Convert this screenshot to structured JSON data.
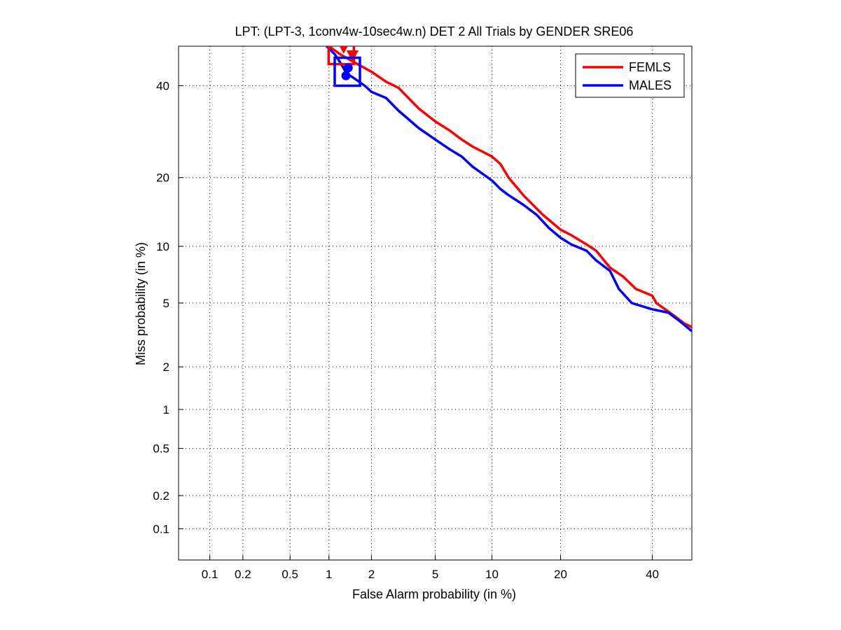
{
  "chart_data": {
    "type": "line",
    "title": "LPT: (LPT-3, 1conv4w-10sec4w.n) DET 2 All Trials by GENDER SRE06",
    "xlabel": "False Alarm probability (in %)",
    "ylabel": "Miss probability (in %)",
    "x_scale": "normal-deviate (probit)",
    "y_scale": "normal-deviate (probit)",
    "xlim": [
      0.05,
      50
    ],
    "ylim": [
      0.05,
      50
    ],
    "xticks": [
      0.1,
      0.2,
      0.5,
      1,
      2,
      5,
      10,
      20,
      40
    ],
    "xtick_labels": [
      "0.1",
      "0.2",
      "0.5",
      "1",
      "2",
      "5",
      "10",
      "20",
      "40"
    ],
    "yticks": [
      0.1,
      0.2,
      0.5,
      1,
      2,
      5,
      10,
      20,
      40
    ],
    "ytick_labels": [
      "0.1",
      "0.2",
      "0.5",
      "1",
      "2",
      "5",
      "10",
      "20",
      "40"
    ],
    "grid": "dotted",
    "legend_position": "top-right",
    "series": [
      {
        "name": "FEMLS",
        "color": "#ff0000",
        "points": [
          [
            1.0,
            50
          ],
          [
            1.2,
            48
          ],
          [
            1.5,
            46
          ],
          [
            2.0,
            43.5
          ],
          [
            2.5,
            41
          ],
          [
            3.0,
            39.5
          ],
          [
            4.0,
            34.5
          ],
          [
            5.0,
            31.5
          ],
          [
            6.0,
            29.5
          ],
          [
            7.0,
            27.5
          ],
          [
            8.0,
            26
          ],
          [
            10.0,
            24
          ],
          [
            11.0,
            22.5
          ],
          [
            12.0,
            20
          ],
          [
            14.0,
            17
          ],
          [
            17.0,
            14
          ],
          [
            20.0,
            12
          ],
          [
            22.0,
            11.3
          ],
          [
            25.0,
            10.2
          ],
          [
            27.0,
            9.5
          ],
          [
            30.0,
            7.8
          ],
          [
            33.0,
            7.0
          ],
          [
            36.0,
            6.0
          ],
          [
            40.0,
            5.5
          ],
          [
            41.0,
            5.0
          ],
          [
            45.0,
            4.3
          ],
          [
            48.0,
            3.8
          ],
          [
            50.0,
            3.6
          ]
        ],
        "operating_points": [
          {
            "marker": "triangle-down",
            "x": 1.28,
            "y": 49.5
          },
          {
            "marker": "triangle-down",
            "x": 1.48,
            "y": 47.5
          },
          {
            "marker": "box",
            "x": 1.23,
            "y": 49.0
          }
        ]
      },
      {
        "name": "MALES",
        "color": "#0000ff",
        "points": [
          [
            0.96,
            50
          ],
          [
            1.1,
            48
          ],
          [
            1.2,
            46
          ],
          [
            1.35,
            43
          ],
          [
            1.5,
            42
          ],
          [
            1.8,
            40
          ],
          [
            2.0,
            38.5
          ],
          [
            2.5,
            37
          ],
          [
            3.0,
            34
          ],
          [
            4.0,
            30
          ],
          [
            5.0,
            27.5
          ],
          [
            6.0,
            25.5
          ],
          [
            7.0,
            24
          ],
          [
            8.0,
            22
          ],
          [
            10.0,
            19.5
          ],
          [
            11.0,
            18
          ],
          [
            12.0,
            17
          ],
          [
            14.0,
            15.5
          ],
          [
            16.0,
            14
          ],
          [
            18.0,
            12.2
          ],
          [
            20.0,
            11
          ],
          [
            22.0,
            10.2
          ],
          [
            25.0,
            9.5
          ],
          [
            27.0,
            8.5
          ],
          [
            30.0,
            7.5
          ],
          [
            32.0,
            6.0
          ],
          [
            35.0,
            5.0
          ],
          [
            40.0,
            4.6
          ],
          [
            44.0,
            4.4
          ],
          [
            47.0,
            3.9
          ],
          [
            50.0,
            3.4
          ]
        ],
        "operating_points": [
          {
            "marker": "circle",
            "x": 1.33,
            "y": 42.5
          },
          {
            "marker": "circle",
            "x": 1.38,
            "y": 44.5
          },
          {
            "marker": "box",
            "x": 1.36,
            "y": 43.5
          }
        ]
      }
    ]
  }
}
